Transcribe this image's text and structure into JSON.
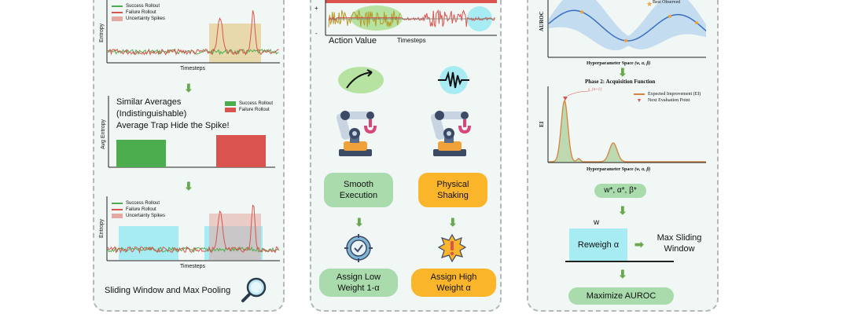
{
  "panel1": {
    "chart1": {
      "legend": [
        "Success Rollout",
        "Failure Rollout",
        "Uncertainty Spikes"
      ],
      "ylabel": "Entropy",
      "xlabel": "Timesteps"
    },
    "chart2": {
      "title_lines": [
        "Similar Averages",
        "(Indistinguishable)",
        "Average Trap Hide the Spike!"
      ],
      "legend": [
        "Success Rollout",
        "Failure Rollout"
      ],
      "ylabel": "Avg Entropy"
    },
    "chart3": {
      "legend": [
        "Success Rollout",
        "Failure Rollout",
        "Uncertainty Spikes"
      ],
      "ylabel": "Entropy",
      "xlabel": "Timesteps"
    },
    "caption": "Sliding Window and Max Pooling"
  },
  "panel2": {
    "plot": {
      "plus": "+",
      "minus": "-",
      "xlabel": "Timesteps",
      "ylabel": "Action Value"
    },
    "left": {
      "state": "Smooth Execution",
      "weight": "Assign Low Weight 1-α"
    },
    "right": {
      "state": "Physical Shaking",
      "weight": "Assign High Weight α"
    }
  },
  "panel3": {
    "chart1": {
      "ylabel": "AUROC",
      "xlabel": "Hyperparameter Space",
      "xlabel_params": "(w, α, β)",
      "legend": "Best Observed"
    },
    "chart2": {
      "title": "Phase 2: Acquisition Function",
      "ylabel": "EI",
      "xlabel": "Hyperparameter Space",
      "xlabel_params": "(w, α, β)",
      "legend": [
        "Expected Improvement (EI)",
        "Next Evaluation Point"
      ],
      "annotation": "x_{n+1}"
    },
    "result": "w*, α*, β*",
    "w_label": "w",
    "reweigh": "Reweigh α",
    "max_window": "Max Sliding Window",
    "final": "Maximize AUROC"
  },
  "colors": {
    "success": "#4cad4f",
    "failure": "#d9534f",
    "spike": "#e3cfa2",
    "window": "#a8ecf3",
    "green_pill": "#a9dbac",
    "orange_pill": "#fbb52b",
    "blue_curve": "#3a6fbf",
    "ei_curve": "#d9823b",
    "ei_fill": "#bcd9b2"
  }
}
